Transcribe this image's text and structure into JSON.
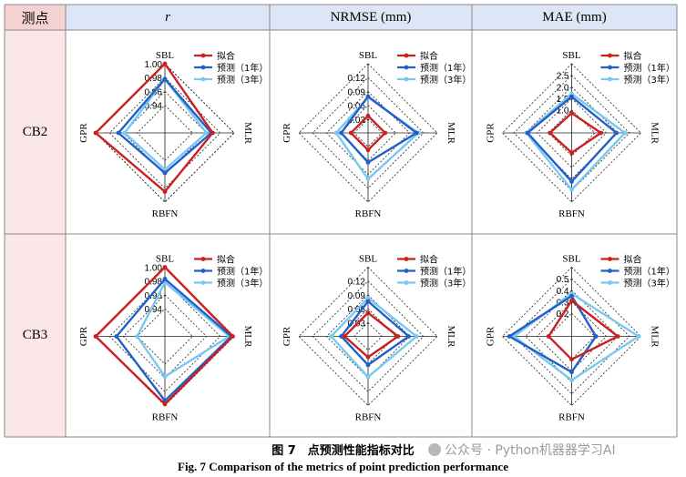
{
  "table": {
    "corner_label": "测点",
    "columns": [
      "r",
      "NRMSE (mm)",
      "MAE (mm)"
    ],
    "rows": [
      "CB2",
      "CB3"
    ]
  },
  "colors": {
    "header_bg": "#dde6f6",
    "corner_bg": "#f4d2d2",
    "rowhead_bg": "#fbe7e7",
    "series": [
      "#cc1f1f",
      "#2060c8",
      "#78c8f0"
    ]
  },
  "axes_labels": [
    "SBL",
    "MLR",
    "RBFN",
    "GPR"
  ],
  "legend": [
    "拟合",
    "预测（1年）",
    "预测（3年）"
  ],
  "chart_data": [
    {
      "type": "radar",
      "row": "CB2",
      "metric": "r",
      "rmin": 0.9,
      "rmax": 1.0,
      "ticks": [
        0.94,
        0.96,
        0.98,
        1.0
      ],
      "tick_labels": [
        "0.94",
        "0.96",
        "0.98",
        "1.00"
      ],
      "axes": [
        "SBL",
        "MLR",
        "RBFN",
        "GPR"
      ],
      "series": [
        {
          "name": "拟合",
          "values": [
            1.0,
            0.969,
            0.985,
            1.0
          ]
        },
        {
          "name": "预测（1年）",
          "values": [
            0.978,
            0.967,
            0.958,
            0.967
          ]
        },
        {
          "name": "预测（3年）",
          "values": [
            0.978,
            0.96,
            0.953,
            0.958
          ]
        }
      ]
    },
    {
      "type": "radar",
      "row": "CB2",
      "metric": "NRMSE (mm)",
      "rmin": 0,
      "rmax": 0.15,
      "ticks": [
        0.03,
        0.06,
        0.09,
        0.12
      ],
      "tick_labels": [
        "0.03",
        "0.06",
        "0.09",
        "0.12"
      ],
      "axes": [
        "SBL",
        "MLR",
        "RBFN",
        "GPR"
      ],
      "series": [
        {
          "name": "拟合",
          "values": [
            0.037,
            0.037,
            0.037,
            0.037
          ]
        },
        {
          "name": "预测（1年）",
          "values": [
            0.079,
            0.105,
            0.064,
            0.058
          ]
        },
        {
          "name": "预测（3年）",
          "values": [
            0.077,
            0.109,
            0.1,
            0.069
          ]
        }
      ]
    },
    {
      "type": "radar",
      "row": "CB2",
      "metric": "MAE (mm)",
      "rmin": 0,
      "rmax": 3.0,
      "ticks": [
        1.0,
        1.5,
        2.0,
        2.5
      ],
      "tick_labels": [
        "1.0",
        "1.5",
        "2.0",
        "2.5"
      ],
      "axes": [
        "SBL",
        "MLR",
        "RBFN",
        "GPR"
      ],
      "series": [
        {
          "name": "拟合",
          "values": [
            0.86,
            1.27,
            0.86,
            0.94
          ]
        },
        {
          "name": "预测（1年）",
          "values": [
            1.57,
            1.94,
            2.11,
            1.91
          ]
        },
        {
          "name": "预测（3年）",
          "values": [
            1.7,
            2.31,
            2.46,
            1.96
          ]
        }
      ]
    },
    {
      "type": "radar",
      "row": "CB3",
      "metric": "r",
      "rmin": 0.9,
      "rmax": 1.0,
      "ticks": [
        0.94,
        0.96,
        0.98,
        1.0
      ],
      "tick_labels": [
        "0.94",
        "0.96",
        "0.98",
        "1.00"
      ],
      "axes": [
        "SBL",
        "MLR",
        "RBFN",
        "GPR"
      ],
      "series": [
        {
          "name": "拟合",
          "values": [
            1.0,
            0.998,
            0.998,
            1.0
          ]
        },
        {
          "name": "预测（1年）",
          "values": [
            0.983,
            0.996,
            0.993,
            0.97
          ]
        },
        {
          "name": "预测（3年）",
          "values": [
            0.978,
            0.993,
            0.958,
            0.94
          ]
        }
      ]
    },
    {
      "type": "radar",
      "row": "CB3",
      "metric": "NRMSE (mm)",
      "rmin": 0,
      "rmax": 0.15,
      "ticks": [
        0.03,
        0.06,
        0.09,
        0.12
      ],
      "tick_labels": [
        "0.03",
        "0.06",
        "0.09",
        "0.12"
      ],
      "axes": [
        "SBL",
        "MLR",
        "RBFN",
        "GPR"
      ],
      "series": [
        {
          "name": "拟合",
          "values": [
            0.051,
            0.065,
            0.045,
            0.051
          ]
        },
        {
          "name": "预测（1年）",
          "values": [
            0.076,
            0.088,
            0.062,
            0.058
          ]
        },
        {
          "name": "预测（3年）",
          "values": [
            0.083,
            0.105,
            0.088,
            0.08
          ]
        }
      ]
    },
    {
      "type": "radar",
      "row": "CB3",
      "metric": "MAE (mm)",
      "rmin": 0,
      "rmax": 0.6,
      "ticks": [
        0.2,
        0.3,
        0.4,
        0.5
      ],
      "tick_labels": [
        "0.2",
        "0.3",
        "0.4",
        "0.5"
      ],
      "axes": [
        "SBL",
        "MLR",
        "RBFN",
        "GPR"
      ],
      "series": [
        {
          "name": "拟合",
          "values": [
            0.31,
            0.4,
            0.2,
            0.2
          ]
        },
        {
          "name": "预测（1年）",
          "values": [
            0.35,
            0.21,
            0.31,
            0.54
          ]
        },
        {
          "name": "预测（3年）",
          "values": [
            0.37,
            0.58,
            0.38,
            0.5
          ]
        }
      ]
    }
  ],
  "caption": {
    "cn": "图 7　点预测性能指标对比",
    "en": "Fig. 7    Comparison of the metrics of point prediction performance"
  },
  "watermark": "公众号 · Python机器器学习AI"
}
